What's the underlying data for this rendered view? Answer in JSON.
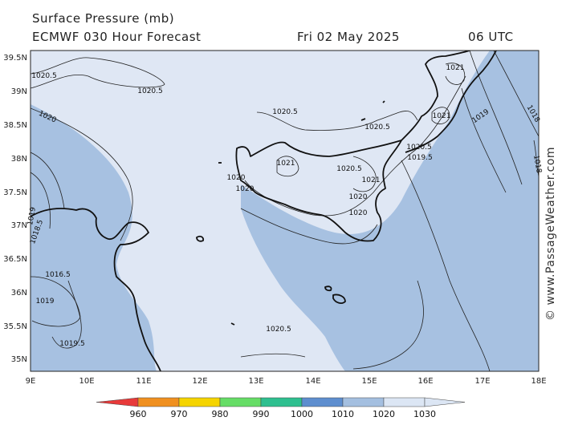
{
  "header": {
    "title": "Surface Pressure (mb)",
    "model": "ECMWF 030 Hour Forecast",
    "date": "Fri 02 May 2025",
    "time": "06 UTC"
  },
  "credit": "© www.PassageWeather.com",
  "axes": {
    "lat": [
      "39.5N",
      "39N",
      "38.5N",
      "38N",
      "37.5N",
      "37N",
      "36.5N",
      "36N",
      "35.5N",
      "35N"
    ],
    "lon": [
      "9E",
      "10E",
      "11E",
      "12E",
      "13E",
      "14E",
      "15E",
      "16E",
      "17E",
      "18E"
    ]
  },
  "isobar_labels": [
    "1020.5",
    "1020.5",
    "1020",
    "1020.5",
    "1020.5",
    "1021",
    "1021",
    "1020.5",
    "1019.5",
    "1019",
    "1018",
    "1018",
    "1021",
    "1020.5",
    "1021",
    "1020",
    "1020",
    "1020",
    "1020",
    "1018.5",
    "1019",
    "1016.5",
    "1019",
    "1019.5",
    "1020.5",
    "1019"
  ],
  "colorbar": {
    "labels": [
      "960",
      "970",
      "980",
      "990",
      "1000",
      "1010",
      "1020",
      "1030"
    ],
    "colors": [
      "#e83a3a",
      "#f09020",
      "#f5d400",
      "#66dd66",
      "#2ebf8f",
      "#5e8ecf",
      "#a4bfe0",
      "#dce6f4"
    ]
  },
  "colors": {
    "high_pressure_fill": "#dfe7f4",
    "low_pressure_fill": "#a7c1e1",
    "coast": "#111111"
  }
}
